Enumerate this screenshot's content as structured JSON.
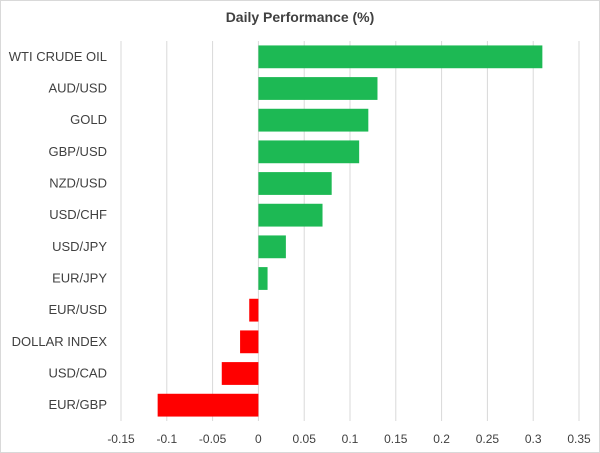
{
  "chart_data": {
    "type": "bar",
    "orientation": "horizontal",
    "title": "Daily Performance (%)",
    "categories": [
      "WTI CRUDE OIL",
      "AUD/USD",
      "GOLD",
      "GBP/USD",
      "NZD/USD",
      "USD/CHF",
      "USD/JPY",
      "EUR/JPY",
      "EUR/USD",
      "DOLLAR INDEX",
      "USD/CAD",
      "EUR/GBP"
    ],
    "values": [
      0.31,
      0.13,
      0.12,
      0.11,
      0.08,
      0.07,
      0.03,
      0.01,
      -0.01,
      -0.02,
      -0.04,
      -0.11
    ],
    "xlim": [
      -0.15,
      0.35
    ],
    "xticks": [
      "-0.15",
      "-0.1",
      "-0.05",
      "0",
      "0.05",
      "0.1",
      "0.15",
      "0.2",
      "0.25",
      "0.3",
      "0.35"
    ],
    "xtick_values": [
      -0.15,
      -0.1,
      -0.05,
      0,
      0.05,
      0.1,
      0.15,
      0.2,
      0.25,
      0.3,
      0.35
    ],
    "grid": true,
    "legend": "none",
    "colors": {
      "positive": "#1db954",
      "negative": "#ff0000",
      "grid": "#d9d9d9",
      "text": "#404040"
    }
  }
}
